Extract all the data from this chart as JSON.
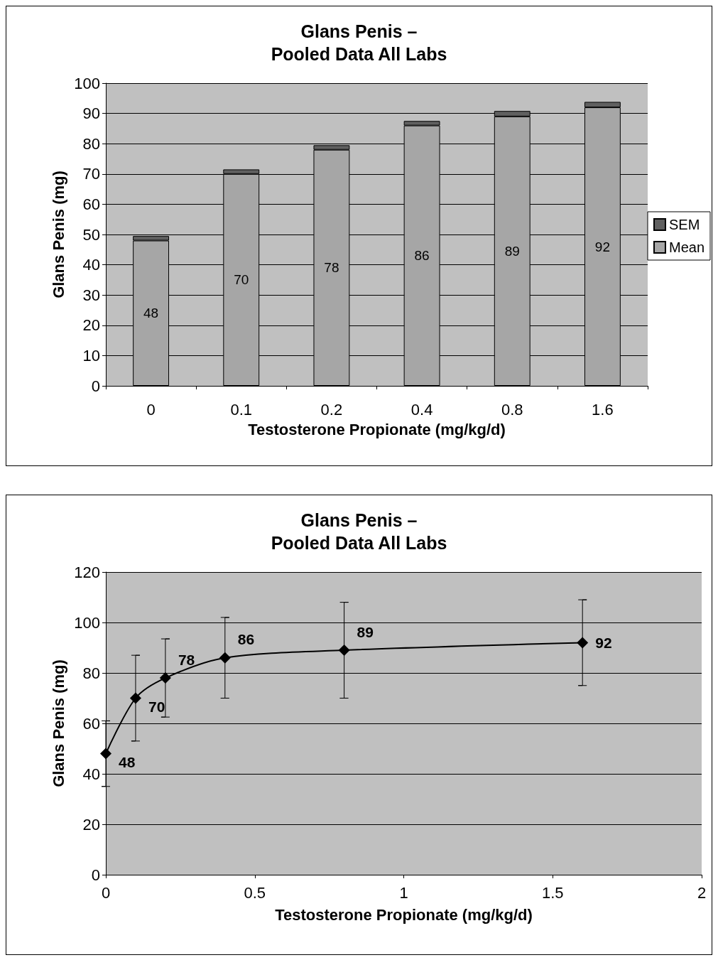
{
  "chart_data": [
    {
      "type": "bar",
      "title": "Glans Penis –\nPooled Data All Labs",
      "xlabel": "Testosterone Propionate (mg/kg/d)",
      "ylabel": "Glans Penis (mg)",
      "categories": [
        "0",
        "0.1",
        "0.2",
        "0.4",
        "0.8",
        "1.6"
      ],
      "stacked": true,
      "series": [
        {
          "name": "Mean",
          "color": "#a6a6a6",
          "values": [
            48,
            70,
            78,
            86,
            89,
            92
          ],
          "value_labels": [
            "48",
            "70",
            "78",
            "86",
            "89",
            "92"
          ]
        },
        {
          "name": "SEM",
          "color": "#606060",
          "values": [
            1.5,
            1.5,
            1.5,
            1.5,
            1.8,
            1.8
          ]
        }
      ],
      "ylim": [
        0,
        100
      ],
      "yticks": [
        0,
        10,
        20,
        30,
        40,
        50,
        60,
        70,
        80,
        90,
        100
      ],
      "grid": "y",
      "legend": "right"
    },
    {
      "type": "line",
      "title": "Glans Penis –\nPooled Data All Labs",
      "xlabel": "Testosterone Propionate (mg/kg/d)",
      "ylabel": "Glans Penis (mg)",
      "x": [
        0,
        0.1,
        0.2,
        0.4,
        0.8,
        1.6
      ],
      "series": [
        {
          "color": "#000000",
          "values": [
            48,
            70,
            78,
            86,
            89,
            92
          ],
          "errors": [
            13,
            17,
            15.5,
            16,
            19,
            17
          ]
        }
      ],
      "xlim": [
        0,
        2
      ],
      "xticks": [
        0,
        0.5,
        1,
        1.5,
        2
      ],
      "ylim": [
        0,
        120
      ],
      "yticks": [
        0,
        20,
        40,
        60,
        80,
        100,
        120
      ],
      "grid": "y",
      "marker": "diamond",
      "data_labels": true
    }
  ]
}
